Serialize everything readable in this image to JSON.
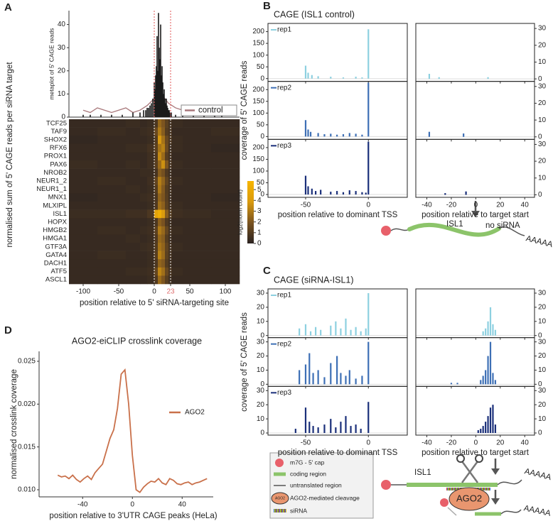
{
  "chart_data": [
    {
      "type": "bar-line",
      "ylabel": "metaplot of 5' CAGE reads",
      "xlim": [
        -120,
        120
      ],
      "ylim": [
        0,
        46
      ],
      "yticks": [
        0,
        10,
        20,
        30,
        40
      ],
      "color": "#1a1a1a",
      "x": [
        -100,
        -90,
        -75,
        -60,
        -45,
        -30,
        -20,
        -15,
        -12,
        -10,
        -8,
        -6,
        -4,
        -2,
        0,
        1,
        2,
        3,
        4,
        5,
        6,
        7,
        8,
        9,
        10,
        11,
        12,
        13,
        14,
        15,
        16,
        17,
        18,
        19,
        20,
        21,
        22,
        24,
        30,
        40,
        55,
        70,
        85,
        95
      ],
      "values": [
        1,
        1,
        1,
        1,
        1,
        2,
        2,
        3,
        3,
        4,
        4,
        5,
        6,
        8,
        15,
        12,
        18,
        22,
        35,
        20,
        45,
        30,
        25,
        40,
        18,
        22,
        15,
        10,
        12,
        8,
        6,
        8,
        5,
        4,
        3,
        3,
        2,
        2,
        1,
        1,
        1,
        1,
        2,
        2
      ],
      "line": {
        "name": "control",
        "color": "#a8777a",
        "x": [
          -100,
          -90,
          -80,
          -70,
          -60,
          -50,
          -40,
          -30,
          -20,
          -10,
          0,
          10,
          20,
          30,
          40,
          50,
          60,
          70,
          80,
          90,
          100
        ],
        "values": [
          3,
          2,
          4,
          3,
          2,
          3,
          4,
          2,
          3,
          5,
          8,
          10,
          6,
          4,
          3,
          2,
          3,
          2,
          3,
          2,
          2
        ]
      },
      "vlines": [
        0,
        23
      ],
      "vline_color": "#e05555"
    },
    {
      "type": "heatmap",
      "ylabel": "normalised sum of 5' CAGE reads per siRNA target",
      "xlabel": "position relative to 5' siRNA-targeting site",
      "xlim": [
        -120,
        120
      ],
      "xticks": [
        -100,
        -50,
        0,
        23,
        50,
        100
      ],
      "highlight_ticks": [
        23
      ],
      "highlight_color": "#e07070",
      "vlines": [
        0,
        23
      ],
      "vline_color": "#ffffff",
      "rows": [
        "TCF25",
        "TAF9",
        "SHOX2",
        "RFX6",
        "PROX1",
        "PAX6",
        "NROB2",
        "NEUR1_2",
        "NEUR1_1",
        "MNX1",
        "MLXIPL",
        "ISL1",
        "HOPX",
        "HMGB2",
        "HMGA1",
        "GTF3A",
        "GATA4",
        "DACH1",
        "ATF5",
        "ASCL1"
      ],
      "bins": [
        -120,
        -80,
        -40,
        -20,
        -10,
        0,
        5,
        10,
        15,
        20,
        25,
        40,
        80,
        120
      ],
      "values": [
        [
          0.3,
          0.3,
          0.4,
          0.3,
          0.4,
          0.8,
          2.5,
          2.0,
          1.2,
          0.6,
          0.4,
          0.3,
          0.3
        ],
        [
          0.3,
          0.4,
          0.3,
          0.4,
          0.5,
          1.5,
          3.0,
          2.2,
          1.0,
          0.7,
          0.3,
          0.3,
          0.4
        ],
        [
          0.2,
          0.3,
          0.3,
          0.3,
          0.4,
          1.0,
          3.8,
          2.8,
          1.5,
          0.8,
          0.4,
          0.3,
          0.3
        ],
        [
          0.3,
          0.3,
          0.4,
          0.4,
          0.6,
          1.2,
          2.8,
          3.2,
          1.6,
          0.5,
          0.4,
          0.3,
          0.2
        ],
        [
          0.3,
          0.3,
          0.3,
          0.3,
          0.5,
          0.9,
          3.4,
          2.6,
          1.1,
          0.6,
          0.3,
          0.3,
          0.3
        ],
        [
          0.4,
          0.3,
          0.4,
          0.3,
          0.5,
          1.1,
          2.6,
          3.6,
          2.0,
          0.7,
          0.4,
          0.3,
          0.3
        ],
        [
          0.3,
          0.3,
          0.3,
          0.4,
          0.4,
          0.7,
          2.2,
          1.8,
          0.9,
          0.5,
          0.3,
          0.3,
          0.3
        ],
        [
          0.3,
          0.4,
          0.3,
          0.3,
          0.5,
          1.3,
          3.1,
          2.4,
          1.3,
          0.6,
          0.4,
          0.3,
          0.3
        ],
        [
          0.3,
          0.3,
          0.4,
          0.3,
          0.4,
          1.0,
          2.9,
          2.1,
          1.0,
          0.6,
          0.3,
          0.3,
          0.3
        ],
        [
          0.2,
          0.3,
          0.3,
          0.4,
          0.5,
          0.8,
          2.4,
          2.0,
          1.1,
          0.5,
          0.3,
          0.3,
          0.2
        ],
        [
          0.3,
          0.3,
          0.3,
          0.3,
          0.4,
          0.9,
          2.7,
          2.3,
          1.2,
          0.6,
          0.4,
          0.3,
          0.3
        ],
        [
          0.4,
          0.4,
          0.5,
          0.5,
          0.8,
          4.5,
          5.2,
          4.0,
          2.2,
          1.0,
          0.5,
          0.4,
          0.3
        ],
        [
          0.3,
          0.3,
          0.3,
          0.3,
          0.4,
          0.8,
          2.3,
          1.9,
          0.9,
          0.5,
          0.3,
          0.3,
          0.3
        ],
        [
          0.3,
          0.4,
          0.3,
          0.4,
          0.5,
          1.2,
          3.0,
          2.5,
          1.4,
          0.6,
          0.4,
          0.3,
          0.3
        ],
        [
          0.3,
          0.3,
          0.4,
          0.3,
          0.4,
          0.9,
          2.5,
          2.2,
          1.0,
          0.5,
          0.3,
          0.3,
          0.3
        ],
        [
          0.3,
          0.3,
          0.3,
          0.4,
          0.5,
          1.0,
          2.8,
          2.4,
          1.3,
          0.6,
          0.4,
          0.3,
          0.3
        ],
        [
          0.3,
          0.4,
          0.3,
          0.3,
          0.4,
          1.1,
          3.2,
          2.6,
          1.2,
          0.6,
          0.3,
          0.3,
          0.3
        ],
        [
          0.3,
          0.3,
          0.3,
          0.3,
          0.4,
          0.8,
          2.4,
          2.1,
          1.0,
          0.5,
          0.3,
          0.3,
          0.3
        ],
        [
          0.3,
          0.3,
          0.4,
          0.4,
          0.5,
          1.4,
          3.3,
          2.7,
          1.5,
          0.7,
          0.4,
          0.3,
          0.3
        ],
        [
          0.3,
          0.3,
          0.3,
          0.3,
          0.4,
          0.9,
          2.6,
          2.0,
          1.1,
          0.5,
          0.3,
          0.3,
          0.3
        ]
      ],
      "colorbar": {
        "label": "log2(norm count)",
        "lim": [
          0,
          5.8
        ],
        "ticks": [
          0,
          1,
          2,
          3,
          4,
          5
        ],
        "colors": [
          "#2b2321",
          "#7a5320",
          "#d99a0f",
          "#f7b500"
        ]
      }
    },
    {
      "type": "facets",
      "title": "CAGE (ISL1 control)",
      "ylabel": "coverage of 5' CAGE reads",
      "xlabel": "position relative to dominant TSS",
      "xlim": [
        -80,
        31
      ],
      "xticks": [
        -50,
        0
      ],
      "ylim": [
        -12,
        235
      ],
      "yticks": [
        0,
        50,
        100,
        150,
        200
      ],
      "series": [
        {
          "name": "rep1",
          "color": "#8dd0e0",
          "x": [
            -50,
            -48,
            -45,
            -40,
            -30,
            -20,
            -10,
            -5,
            0
          ],
          "values": [
            55,
            25,
            15,
            10,
            8,
            5,
            8,
            5,
            210
          ]
        },
        {
          "name": "rep2",
          "color": "#3d6fb5",
          "x": [
            -50,
            -48,
            -46,
            -40,
            -35,
            -30,
            -25,
            -20,
            -15,
            -10,
            -5,
            0
          ],
          "values": [
            70,
            30,
            20,
            15,
            10,
            12,
            8,
            10,
            15,
            12,
            8,
            230
          ]
        },
        {
          "name": "rep3",
          "color": "#1a2f7a",
          "x": [
            -50,
            -48,
            -45,
            -42,
            -38,
            -30,
            -25,
            -20,
            -15,
            -10,
            -5,
            -2,
            0
          ],
          "values": [
            80,
            35,
            25,
            15,
            20,
            12,
            15,
            10,
            18,
            15,
            10,
            8,
            225
          ]
        }
      ]
    },
    {
      "type": "facets",
      "xlabel": "position relative to target start",
      "xlim": [
        -49,
        48
      ],
      "xticks": [
        -40,
        -20,
        0,
        20,
        40
      ],
      "ylim": [
        -1.5,
        33
      ],
      "yticks": [
        0,
        10,
        20,
        30
      ],
      "series": [
        {
          "color": "#8dd0e0",
          "x": [
            -38,
            -30,
            10
          ],
          "values": [
            3,
            1,
            1
          ]
        },
        {
          "color": "#3d6fb5",
          "x": [
            -38,
            -10
          ],
          "values": [
            3,
            2
          ]
        },
        {
          "color": "#1a2f7a",
          "x": [
            -25,
            -8
          ],
          "values": [
            1,
            2
          ]
        }
      ]
    },
    {
      "type": "facets",
      "title": "CAGE (siRNA-ISL1)",
      "ylabel": "coverage of 5' CAGE reads",
      "xlabel": "position relative to dominant TSS",
      "xlim": [
        -80,
        31
      ],
      "xticks": [
        -50,
        0
      ],
      "ylim": [
        -1.5,
        33
      ],
      "yticks": [
        0,
        10,
        20,
        30
      ],
      "series": [
        {
          "name": "rep1",
          "color": "#8dd0e0",
          "x": [
            -55,
            -50,
            -46,
            -42,
            -38,
            -30,
            -26,
            -22,
            -18,
            -14,
            -10,
            -6,
            -2,
            0
          ],
          "values": [
            5,
            8,
            3,
            6,
            4,
            7,
            10,
            5,
            12,
            4,
            6,
            3,
            5,
            30
          ]
        },
        {
          "name": "rep2",
          "color": "#3d6fb5",
          "x": [
            -55,
            -50,
            -47,
            -44,
            -40,
            -35,
            -30,
            -25,
            -22,
            -18,
            -15,
            -10,
            -5,
            0
          ],
          "values": [
            10,
            14,
            22,
            8,
            10,
            5,
            15,
            20,
            8,
            6,
            10,
            4,
            6,
            30
          ]
        },
        {
          "name": "rep3",
          "color": "#1a2f7a",
          "x": [
            -58,
            -50,
            -47,
            -44,
            -40,
            -35,
            -30,
            -26,
            -22,
            -18,
            -14,
            -10,
            -6,
            0
          ],
          "values": [
            3,
            18,
            8,
            5,
            4,
            6,
            10,
            4,
            8,
            12,
            5,
            6,
            3,
            22
          ]
        }
      ]
    },
    {
      "type": "facets",
      "xlabel": "position relative to target start",
      "xlim": [
        -49,
        48
      ],
      "xticks": [
        -40,
        -20,
        0,
        20,
        40
      ],
      "ylim": [
        -1.5,
        33
      ],
      "yticks": [
        0,
        10,
        20,
        30
      ],
      "series": [
        {
          "color": "#8dd0e0",
          "x": [
            6,
            8,
            10,
            12,
            14,
            16
          ],
          "values": [
            3,
            5,
            10,
            20,
            8,
            4
          ]
        },
        {
          "color": "#3d6fb5",
          "x": [
            -20,
            -15,
            4,
            6,
            8,
            10,
            12,
            14,
            16
          ],
          "values": [
            1,
            1,
            3,
            6,
            10,
            20,
            30,
            8,
            3
          ]
        },
        {
          "color": "#1a2f7a",
          "x": [
            2,
            4,
            6,
            8,
            10,
            12,
            14,
            16
          ],
          "values": [
            2,
            3,
            5,
            8,
            12,
            18,
            20,
            6
          ]
        }
      ]
    },
    {
      "type": "line",
      "title": "AGO2-eiCLIP crosslink coverage",
      "ylabel": "normalised crosslink coverage",
      "xlabel": "position relative to 3'UTR CAGE peaks (HeLa)",
      "xlim": [
        -75,
        65
      ],
      "xticks": [
        -40,
        0,
        40
      ],
      "ylim": [
        0.00917,
        0.02616
      ],
      "yticks": [
        {
          "value": 0.01,
          "label": "0.010"
        },
        {
          "value": 0.015,
          "label": "0.015"
        },
        {
          "value": 0.02,
          "label": "0.020"
        },
        {
          "value": 0.025,
          "label": "0.025"
        }
      ],
      "series": [
        {
          "name": "AGO2",
          "color": "#c9704a",
          "x": [
            -60,
            -57,
            -54,
            -51,
            -48,
            -45,
            -42,
            -39,
            -36,
            -33,
            -30,
            -27,
            -24,
            -21,
            -18,
            -15,
            -12,
            -9,
            -6,
            -3,
            0,
            3,
            6,
            9,
            12,
            15,
            18,
            21,
            24,
            27,
            30,
            33,
            36,
            39,
            42,
            45,
            48,
            51,
            54,
            57,
            60
          ],
          "values": [
            0.0117,
            0.0115,
            0.0116,
            0.0113,
            0.0117,
            0.0112,
            0.0109,
            0.0113,
            0.0116,
            0.0112,
            0.012,
            0.0125,
            0.013,
            0.0145,
            0.016,
            0.017,
            0.0195,
            0.0235,
            0.024,
            0.02,
            0.014,
            0.01,
            0.0097,
            0.0103,
            0.0107,
            0.011,
            0.0109,
            0.0113,
            0.0108,
            0.0106,
            0.0113,
            0.0111,
            0.0107,
            0.0106,
            0.0108,
            0.0109,
            0.0106,
            0.0108,
            0.0109,
            0.0111,
            0.0113
          ]
        }
      ]
    }
  ],
  "figure": {
    "panels": [
      "A",
      "B",
      "C",
      "D"
    ],
    "diagram_b": {
      "gene": "ISL1",
      "note": "no siRNA",
      "tail": "AAAAA"
    },
    "diagram_c": {
      "gene": "ISL1",
      "protein": "AGO2",
      "tail": "AAAAA",
      "legend": [
        "m7G - 5' cap",
        "coding region",
        "untranslated region",
        "AGO2-mediated cleavage",
        "siRNA"
      ]
    }
  }
}
